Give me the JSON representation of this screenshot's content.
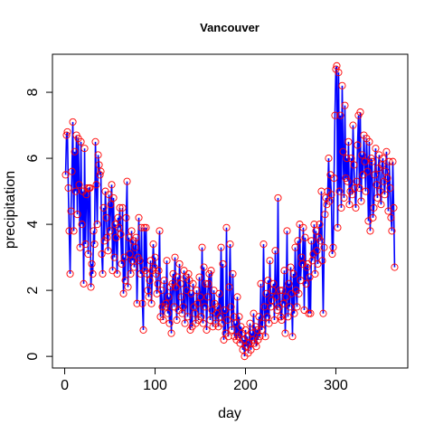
{
  "chart_data": {
    "type": "line",
    "title": "Vancouver",
    "x_label": "day",
    "y_label": "precipitation",
    "color": "#0000ff",
    "marker_color": "#ff0000",
    "xlim": [
      -13.56,
      379.56
    ],
    "xticks": [
      0,
      100,
      200,
      300
    ],
    "ylim": [
      -0.352,
      9.152
    ],
    "yticks": [
      0,
      2,
      4,
      6,
      8
    ],
    "x": [
      1,
      2,
      3,
      4,
      5,
      6,
      7,
      8,
      9,
      10,
      11,
      12,
      13,
      14,
      15,
      16,
      17,
      18,
      19,
      20,
      21,
      22,
      23,
      24,
      25,
      26,
      27,
      28,
      29,
      30,
      31,
      32,
      33,
      34,
      35,
      36,
      37,
      38,
      39,
      40,
      41,
      42,
      43,
      44,
      45,
      46,
      47,
      48,
      49,
      50,
      51,
      52,
      53,
      54,
      55,
      56,
      57,
      58,
      59,
      60,
      61,
      62,
      63,
      64,
      65,
      66,
      67,
      68,
      69,
      70,
      71,
      72,
      73,
      74,
      75,
      76,
      77,
      78,
      79,
      80,
      81,
      82,
      83,
      84,
      85,
      86,
      87,
      88,
      89,
      90,
      91,
      92,
      93,
      94,
      95,
      96,
      97,
      98,
      99,
      100,
      101,
      102,
      103,
      104,
      105,
      106,
      107,
      108,
      109,
      110,
      111,
      112,
      113,
      114,
      115,
      116,
      117,
      118,
      119,
      120,
      121,
      122,
      123,
      124,
      125,
      126,
      127,
      128,
      129,
      130,
      131,
      132,
      133,
      134,
      135,
      136,
      137,
      138,
      139,
      140,
      141,
      142,
      143,
      144,
      145,
      146,
      147,
      148,
      149,
      150,
      151,
      152,
      153,
      154,
      155,
      156,
      157,
      158,
      159,
      160,
      161,
      162,
      163,
      164,
      165,
      166,
      167,
      168,
      169,
      170,
      171,
      172,
      173,
      174,
      175,
      176,
      177,
      178,
      179,
      180,
      181,
      182,
      183,
      184,
      185,
      186,
      187,
      188,
      189,
      190,
      191,
      192,
      193,
      194,
      195,
      196,
      197,
      198,
      199,
      200,
      201,
      202,
      203,
      204,
      205,
      206,
      207,
      208,
      209,
      210,
      211,
      212,
      213,
      214,
      215,
      216,
      217,
      218,
      219,
      220,
      221,
      222,
      223,
      224,
      225,
      226,
      227,
      228,
      229,
      230,
      231,
      232,
      233,
      234,
      235,
      236,
      237,
      238,
      239,
      240,
      241,
      242,
      243,
      244,
      245,
      246,
      247,
      248,
      249,
      250,
      251,
      252,
      253,
      254,
      255,
      256,
      257,
      258,
      259,
      260,
      261,
      262,
      263,
      264,
      265,
      266,
      267,
      268,
      269,
      270,
      271,
      272,
      273,
      274,
      275,
      276,
      277,
      278,
      279,
      280,
      281,
      282,
      283,
      284,
      285,
      286,
      287,
      288,
      289,
      290,
      291,
      292,
      293,
      294,
      295,
      296,
      297,
      298,
      299,
      300,
      301,
      302,
      303,
      304,
      305,
      306,
      307,
      308,
      309,
      310,
      311,
      312,
      313,
      314,
      315,
      316,
      317,
      318,
      319,
      320,
      321,
      322,
      323,
      324,
      325,
      326,
      327,
      328,
      329,
      330,
      331,
      332,
      333,
      334,
      335,
      336,
      337,
      338,
      339,
      340,
      341,
      342,
      343,
      344,
      345,
      346,
      347,
      348,
      349,
      350,
      351,
      352,
      353,
      354,
      355,
      356,
      357,
      358,
      359,
      360,
      361,
      362,
      363,
      364,
      365
    ],
    "values": [
      5.5,
      6.7,
      6.8,
      5.1,
      3.8,
      2.5,
      4.4,
      5.6,
      7.1,
      3.8,
      6.2,
      5.0,
      6.7,
      4.3,
      6.6,
      5.2,
      3.3,
      6.5,
      4.0,
      5.0,
      2.2,
      6.3,
      3.4,
      4.9,
      5.1,
      3.1,
      5.1,
      5.1,
      2.1,
      2.8,
      2.5,
      3.8,
      3.4,
      6.5,
      5.2,
      4.0,
      6.1,
      5.8,
      5.5,
      5.6,
      3.1,
      2.5,
      4.5,
      3.5,
      5.0,
      4.2,
      3.6,
      3.2,
      4.9,
      3.8,
      4.6,
      5.2,
      2.6,
      4.8,
      3.0,
      4.0,
      3.6,
      2.5,
      4.2,
      3.9,
      4.5,
      3.7,
      2.8,
      4.5,
      1.9,
      3.0,
      2.3,
      4.2,
      5.3,
      2.1,
      3.6,
      3.1,
      2.5,
      3.8,
      2.9,
      3.5,
      2.7,
      3.3,
      3.6,
      1.6,
      3.0,
      4.2,
      2.9,
      2.5,
      3.9,
      1.6,
      0.8,
      3.9,
      2.6,
      3.9,
      2.5,
      2.0,
      1.8,
      2.3,
      2.9,
      1.6,
      2.6,
      3.4,
      2.7,
      3.0,
      2.5,
      1.9,
      2.2,
      2.6,
      3.8,
      1.2,
      2.0,
      1.5,
      1.1,
      2.3,
      1.5,
      1.6,
      2.9,
      1.3,
      1.8,
      1.0,
      2.1,
      0.7,
      2.2,
      2.5,
      1.5,
      3.0,
      2.1,
      1.1,
      2.4,
      1.4,
      2.8,
      2.2,
      1.8,
      1.3,
      1.5,
      2.6,
      1.0,
      2.4,
      2.0,
      1.2,
      2.5,
      2.3,
      0.8,
      1.9,
      0.9,
      2.2,
      1.5,
      1.3,
      1.0,
      2.0,
      1.6,
      1.1,
      2.4,
      1.8,
      1.2,
      3.3,
      1.0,
      2.7,
      1.5,
      2.2,
      0.8,
      1.8,
      2.2,
      2.5,
      1.1,
      2.6,
      1.4,
      0.9,
      2.0,
      1.6,
      1.0,
      1.3,
      1.5,
      0.9,
      1.9,
      1.2,
      3.3,
      1.0,
      2.8,
      0.5,
      1.4,
      0.7,
      3.9,
      1.1,
      0.6,
      2.1,
      3.4,
      1.5,
      0.8,
      2.5,
      1.2,
      0.6,
      1.0,
      0.5,
      1.8,
      0.6,
      1.2,
      0.4,
      0.9,
      0.7,
      0.2,
      0.5,
      0.0,
      0.8,
      0.3,
      0.6,
      0.1,
      0.4,
      1.0,
      0.2,
      0.7,
      0.5,
      1.3,
      0.4,
      0.9,
      0.3,
      0.8,
      0.5,
      1.2,
      0.6,
      2.2,
      0.8,
      1.0,
      3.4,
      1.5,
      0.6,
      1.9,
      1.2,
      2.3,
      1.0,
      2.9,
      1.5,
      1.7,
      2.0,
      2.2,
      1.1,
      3.2,
      1.8,
      1.4,
      4.8,
      1.5,
      2.0,
      1.2,
      1.1,
      2.0,
      1.6,
      2.6,
      0.7,
      1.8,
      3.8,
      1.2,
      2.2,
      1.5,
      2.7,
      1.9,
      0.6,
      2.5,
      1.3,
      3.3,
      2.0,
      1.5,
      3.5,
      1.9,
      4.0,
      2.3,
      3.0,
      2.8,
      3.9,
      1.4,
      3.6,
      2.2,
      2.7,
      2.8,
      1.3,
      2.4,
      1.3,
      3.5,
      2.9,
      3.1,
      4.0,
      2.5,
      3.8,
      3.2,
      2.8,
      3.6,
      4.0,
      3.5,
      5.0,
      2.9,
      1.3,
      3.3,
      4.3,
      4.8,
      4.6,
      5.0,
      6.0,
      4.7,
      5.5,
      4.9,
      3.1,
      3.3,
      5.4,
      7.3,
      8.7,
      8.8,
      3.9,
      8.6,
      5.0,
      7.3,
      4.5,
      8.2,
      6.2,
      4.8,
      7.6,
      5.4,
      6.0,
      5.3,
      6.5,
      4.6,
      5.0,
      6.0,
      4.9,
      7.0,
      5.8,
      5.1,
      4.5,
      5.3,
      6.4,
      7.3,
      5.1,
      7.4,
      4.7,
      6.1,
      5.5,
      6.7,
      5.9,
      5.0,
      6.6,
      5.6,
      4.1,
      6.5,
      3.8,
      6.0,
      5.9,
      4.2,
      4.5,
      5.5,
      6.3,
      5.2,
      4.8,
      5.7,
      6.1,
      5.0,
      4.6,
      5.8,
      6.0,
      5.3,
      4.9,
      5.6,
      6.2,
      5.4,
      4.4,
      5.9,
      5.1,
      4.2,
      3.8,
      5.9,
      4.5,
      2.7
    ]
  }
}
